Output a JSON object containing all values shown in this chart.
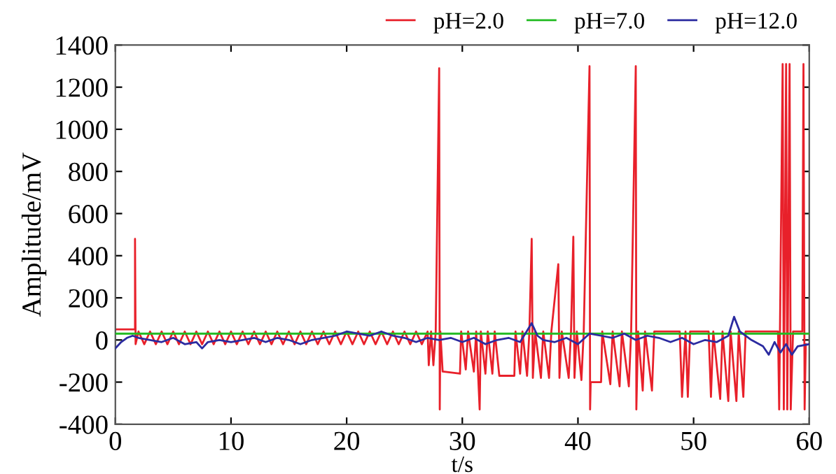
{
  "chart_data": {
    "type": "line",
    "xlabel": "t/s",
    "ylabel": "Amplitude/mV",
    "xlim": [
      0,
      60
    ],
    "xticks": [
      0,
      10,
      20,
      30,
      40,
      50,
      60
    ],
    "ylim": [
      -400,
      1400
    ],
    "yticks": [
      -400,
      -200,
      0,
      200,
      400,
      600,
      800,
      1000,
      1200,
      1400
    ],
    "grid": false,
    "legend": "top right",
    "marker": "none",
    "line_style": "solid",
    "series": [
      {
        "name": "pH=2.0",
        "color": "#e8202a",
        "x": [
          0,
          1.7,
          1.7,
          1.75,
          2.0,
          2.5,
          3.0,
          3.5,
          4.0,
          4.5,
          5.0,
          5.5,
          6.0,
          6.5,
          7.0,
          7.5,
          8.0,
          8.5,
          9.0,
          9.5,
          10.0,
          10.5,
          11.0,
          11.5,
          12.0,
          12.5,
          13.0,
          13.5,
          14.0,
          14.5,
          15.0,
          15.5,
          16.0,
          16.5,
          17.0,
          17.5,
          18.0,
          18.5,
          19.0,
          19.5,
          20.0,
          20.5,
          21.0,
          21.5,
          22.0,
          22.5,
          23.0,
          23.5,
          24.0,
          24.5,
          25.0,
          25.5,
          26.0,
          26.5,
          27.0,
          27.1,
          27.3,
          27.5,
          27.7,
          28.0,
          28.05,
          28.1,
          28.3,
          29.8,
          29.9,
          30.3,
          30.5,
          31.0,
          31.2,
          31.5,
          31.6,
          32.0,
          32.2,
          32.6,
          32.8,
          33.2,
          34.5,
          34.6,
          35.0,
          35.2,
          35.6,
          35.8,
          36.0,
          36.1,
          36.3,
          36.8,
          37.0,
          37.5,
          37.7,
          38.3,
          38.4,
          38.6,
          39.2,
          39.4,
          39.6,
          39.7,
          39.9,
          40.3,
          40.5,
          41.0,
          41.05,
          41.1,
          42.0,
          42.1,
          42.8,
          43.0,
          43.6,
          43.8,
          44.4,
          44.6,
          45.0,
          45.05,
          45.2,
          45.6,
          45.8,
          46.4,
          46.6,
          48.8,
          49.0,
          49.3,
          49.5,
          49.7,
          51.3,
          51.5,
          51.7,
          52.3,
          52.5,
          53.0,
          53.2,
          53.7,
          53.9,
          54.3,
          54.5,
          57.3,
          57.4,
          57.7,
          57.8,
          58.0,
          58.1,
          58.3,
          58.4,
          58.6,
          59.4,
          59.5,
          59.6,
          59.7
        ],
        "values": [
          50,
          50,
          480,
          -20,
          40,
          -20,
          40,
          -20,
          40,
          -20,
          40,
          -20,
          40,
          -20,
          40,
          -20,
          40,
          -20,
          40,
          -20,
          40,
          -20,
          40,
          -20,
          40,
          -20,
          40,
          -20,
          40,
          -20,
          40,
          -20,
          40,
          -20,
          40,
          -20,
          40,
          -20,
          40,
          -20,
          40,
          -20,
          40,
          -20,
          40,
          -20,
          40,
          -20,
          40,
          -20,
          40,
          -20,
          40,
          -20,
          40,
          -120,
          40,
          -120,
          40,
          1290,
          -330,
          40,
          -150,
          -160,
          40,
          -140,
          40,
          -150,
          40,
          -330,
          40,
          -160,
          40,
          -160,
          40,
          -170,
          -170,
          40,
          -160,
          40,
          -170,
          40,
          480,
          -180,
          40,
          -180,
          40,
          -180,
          40,
          360,
          -180,
          40,
          -180,
          40,
          490,
          -180,
          40,
          -190,
          40,
          1300,
          -330,
          -200,
          -200,
          40,
          -210,
          40,
          -220,
          40,
          -220,
          40,
          1300,
          -330,
          40,
          -240,
          40,
          -240,
          40,
          40,
          -270,
          40,
          -270,
          40,
          40,
          -270,
          40,
          -280,
          40,
          -290,
          40,
          -290,
          40,
          -270,
          40,
          40,
          -330,
          1310,
          -330,
          1310,
          -330,
          1310,
          -330,
          40,
          40,
          1310,
          -330,
          -20
        ]
      },
      {
        "name": "pH=7.0",
        "color": "#22bb22",
        "x": [
          0,
          60
        ],
        "values": [
          30,
          30
        ]
      },
      {
        "name": "pH=12.0",
        "color": "#2b2ba0",
        "x": [
          0,
          0.5,
          1,
          1.5,
          2,
          3,
          4,
          5,
          6,
          7,
          7.5,
          8,
          9,
          10,
          11,
          12,
          13,
          14,
          15,
          16,
          17,
          18,
          19,
          20,
          21,
          22,
          23,
          24,
          25,
          26,
          27,
          28,
          29,
          30,
          31,
          32,
          33,
          34,
          35,
          36,
          36.5,
          37,
          38,
          39,
          40,
          41,
          42,
          43,
          44,
          45,
          46,
          47,
          48,
          49,
          50,
          51,
          52,
          53,
          53.5,
          54,
          55,
          56,
          56.5,
          57,
          57.5,
          58,
          58.5,
          59,
          60
        ],
        "values": [
          -40,
          -10,
          10,
          20,
          10,
          0,
          -10,
          10,
          -20,
          -10,
          -40,
          -10,
          0,
          -10,
          0,
          10,
          -10,
          10,
          0,
          -20,
          0,
          10,
          20,
          40,
          30,
          20,
          40,
          20,
          10,
          -10,
          10,
          0,
          10,
          -10,
          10,
          -20,
          0,
          10,
          -10,
          80,
          20,
          0,
          -10,
          10,
          -20,
          30,
          20,
          10,
          30,
          0,
          20,
          10,
          -10,
          10,
          -20,
          0,
          -10,
          20,
          110,
          40,
          0,
          -30,
          -70,
          -10,
          -60,
          -20,
          -70,
          -30,
          -20
        ]
      }
    ]
  }
}
